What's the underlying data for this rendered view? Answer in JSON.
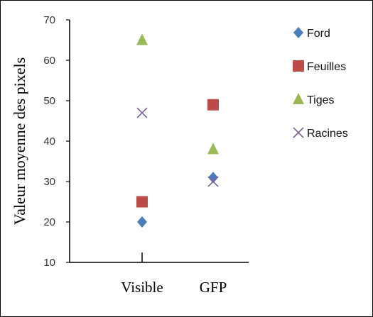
{
  "chart_data": {
    "type": "scatter",
    "title": "",
    "xlabel": "",
    "ylabel": "Valeur moyenne des pixels",
    "categories": [
      "Visible",
      "GFP"
    ],
    "ylim": [
      10,
      70
    ],
    "yticks": [
      10,
      20,
      30,
      40,
      50,
      60,
      70
    ],
    "grid": false,
    "legend_position": "right",
    "series": [
      {
        "name": "Ford",
        "marker": "diamond",
        "color": "#4a7ebb",
        "values": [
          20,
          31
        ]
      },
      {
        "name": "Feuilles",
        "marker": "square",
        "color": "#be4b48",
        "values": [
          25,
          49
        ]
      },
      {
        "name": "Tiges",
        "marker": "triangle",
        "color": "#98b954",
        "values": [
          65,
          38
        ]
      },
      {
        "name": "Racines",
        "marker": "x",
        "color": "#7d60a0",
        "values": [
          47,
          30
        ]
      }
    ]
  }
}
